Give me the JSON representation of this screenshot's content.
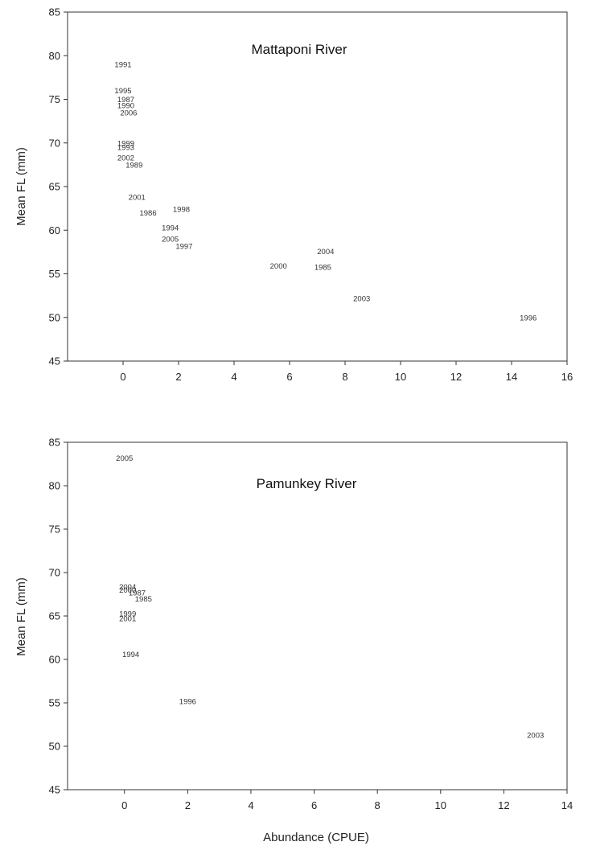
{
  "chart_data": [
    {
      "type": "scatter",
      "title": "Mattaponi River",
      "xlabel": "",
      "ylabel": "Mean FL (mm)",
      "xlim": [
        -2,
        16
      ],
      "ylim": [
        45,
        85
      ],
      "xticks": [
        0,
        2,
        4,
        6,
        8,
        10,
        12,
        14,
        16
      ],
      "yticks": [
        45,
        50,
        55,
        60,
        65,
        70,
        75,
        80,
        85
      ],
      "grid": false,
      "legend": "none",
      "points": [
        {
          "label": "1991",
          "x": 0.0,
          "y": 79.0
        },
        {
          "label": "1995",
          "x": 0.0,
          "y": 76.0
        },
        {
          "label": "1987",
          "x": 0.1,
          "y": 75.0
        },
        {
          "label": "1990",
          "x": 0.1,
          "y": 74.3
        },
        {
          "label": "2006",
          "x": 0.2,
          "y": 73.5
        },
        {
          "label": "1999",
          "x": 0.1,
          "y": 70.0
        },
        {
          "label": "1993",
          "x": 0.1,
          "y": 69.5
        },
        {
          "label": "2002",
          "x": 0.1,
          "y": 68.3
        },
        {
          "label": "1989",
          "x": 0.4,
          "y": 67.5
        },
        {
          "label": "2001",
          "x": 0.5,
          "y": 63.8
        },
        {
          "label": "1986",
          "x": 0.9,
          "y": 62.0
        },
        {
          "label": "1998",
          "x": 2.1,
          "y": 62.4
        },
        {
          "label": "1994",
          "x": 1.7,
          "y": 60.3
        },
        {
          "label": "2005",
          "x": 1.7,
          "y": 59.0
        },
        {
          "label": "1997",
          "x": 2.2,
          "y": 58.2
        },
        {
          "label": "2004",
          "x": 7.3,
          "y": 57.6
        },
        {
          "label": "2000",
          "x": 5.6,
          "y": 55.9
        },
        {
          "label": "1985",
          "x": 7.2,
          "y": 55.8
        },
        {
          "label": "2003",
          "x": 8.6,
          "y": 52.2
        },
        {
          "label": "1996",
          "x": 14.6,
          "y": 50.0
        }
      ]
    },
    {
      "type": "scatter",
      "title": "Pamunkey River",
      "xlabel": "Abundance (CPUE)",
      "ylabel": "Mean FL (mm)",
      "xlim": [
        -1.8,
        14
      ],
      "ylim": [
        45,
        85
      ],
      "xticks": [
        0,
        2,
        4,
        6,
        8,
        10,
        12,
        14
      ],
      "yticks": [
        45,
        50,
        55,
        60,
        65,
        70,
        75,
        80,
        85
      ],
      "grid": false,
      "legend": "none",
      "points": [
        {
          "label": "2005",
          "x": 0.0,
          "y": 83.2
        },
        {
          "label": "2004",
          "x": 0.1,
          "y": 68.4
        },
        {
          "label": "2000",
          "x": 0.1,
          "y": 68.0
        },
        {
          "label": "1987",
          "x": 0.4,
          "y": 67.7
        },
        {
          "label": "1985",
          "x": 0.6,
          "y": 67.0
        },
        {
          "label": "1999",
          "x": 0.1,
          "y": 65.3
        },
        {
          "label": "2001",
          "x": 0.1,
          "y": 64.7
        },
        {
          "label": "1994",
          "x": 0.2,
          "y": 60.6
        },
        {
          "label": "1996",
          "x": 2.0,
          "y": 55.2
        },
        {
          "label": "2003",
          "x": 13.0,
          "y": 51.3
        }
      ]
    }
  ]
}
